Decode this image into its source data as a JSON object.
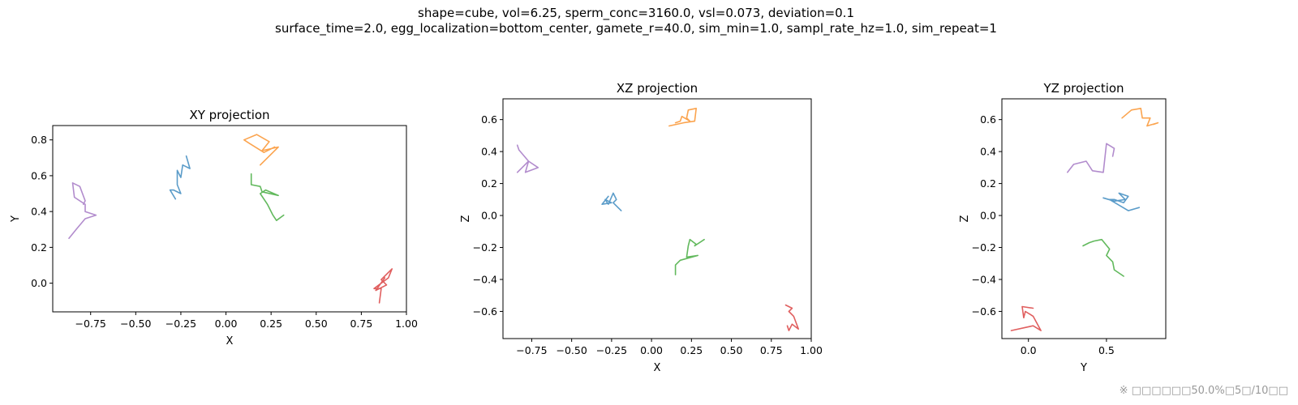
{
  "suptitle_line1": "shape=cube, vol=6.25, sperm_conc=3160.0, vsl=0.073, deviation=0.1",
  "suptitle_line2": "surface_time=2.0, egg_localization=bottom_center, gamete_r=40.0, sim_min=1.0, sampl_rate_hz=1.0, sim_repeat=1",
  "footnote": "※ □□□□□□50.0%□5□/10□□",
  "colors": {
    "blue": "#5b9cc9",
    "orange": "#fba44f",
    "green": "#62b95d",
    "red": "#e05f5f",
    "purple": "#b28ccd"
  },
  "chart_data": [
    {
      "type": "line",
      "title": "XY projection",
      "xlabel": "X",
      "ylabel": "Y",
      "xlim": [
        -0.96,
        1.0
      ],
      "ylim": [
        -0.16,
        0.88
      ],
      "xticks": [
        -0.75,
        -0.5,
        -0.25,
        0.0,
        0.25,
        0.5,
        0.75,
        1.0
      ],
      "xtick_labels": [
        "−0.75",
        "−0.50",
        "−0.25",
        "0.00",
        "0.25",
        "0.50",
        "0.75",
        "1.00"
      ],
      "yticks": [
        0.0,
        0.2,
        0.4,
        0.6,
        0.8
      ],
      "ytick_labels": [
        "0.0",
        "0.2",
        "0.4",
        "0.6",
        "0.8"
      ],
      "grid": false,
      "series": [
        {
          "color_key": "blue",
          "points": [
            [
              -0.22,
              0.71
            ],
            [
              -0.2,
              0.64
            ],
            [
              -0.24,
              0.66
            ],
            [
              -0.25,
              0.59
            ],
            [
              -0.27,
              0.63
            ],
            [
              -0.27,
              0.55
            ],
            [
              -0.25,
              0.5
            ],
            [
              -0.29,
              0.52
            ],
            [
              -0.31,
              0.52
            ],
            [
              -0.28,
              0.47
            ]
          ]
        },
        {
          "color_key": "orange",
          "points": [
            [
              0.19,
              0.66
            ],
            [
              0.26,
              0.73
            ],
            [
              0.29,
              0.76
            ],
            [
              0.2,
              0.74
            ],
            [
              0.24,
              0.79
            ],
            [
              0.17,
              0.83
            ],
            [
              0.1,
              0.8
            ],
            [
              0.13,
              0.78
            ],
            [
              0.21,
              0.73
            ],
            [
              0.27,
              0.76
            ]
          ]
        },
        {
          "color_key": "green",
          "points": [
            [
              0.14,
              0.61
            ],
            [
              0.14,
              0.55
            ],
            [
              0.19,
              0.54
            ],
            [
              0.2,
              0.51
            ],
            [
              0.29,
              0.49
            ],
            [
              0.22,
              0.52
            ],
            [
              0.19,
              0.5
            ],
            [
              0.23,
              0.44
            ],
            [
              0.26,
              0.38
            ],
            [
              0.28,
              0.35
            ],
            [
              0.32,
              0.38
            ]
          ]
        },
        {
          "color_key": "red",
          "points": [
            [
              0.85,
              -0.11
            ],
            [
              0.86,
              -0.03
            ],
            [
              0.82,
              -0.03
            ],
            [
              0.9,
              0.03
            ],
            [
              0.92,
              0.08
            ],
            [
              0.86,
              0.02
            ],
            [
              0.89,
              -0.01
            ],
            [
              0.83,
              -0.04
            ],
            [
              0.88,
              0.03
            ]
          ]
        },
        {
          "color_key": "purple",
          "points": [
            [
              -0.87,
              0.25
            ],
            [
              -0.83,
              0.3
            ],
            [
              -0.78,
              0.36
            ],
            [
              -0.72,
              0.38
            ],
            [
              -0.78,
              0.4
            ],
            [
              -0.78,
              0.44
            ],
            [
              -0.84,
              0.48
            ],
            [
              -0.85,
              0.56
            ],
            [
              -0.81,
              0.54
            ],
            [
              -0.78,
              0.46
            ],
            [
              -0.79,
              0.44
            ]
          ]
        }
      ]
    },
    {
      "type": "line",
      "title": "XZ projection",
      "xlabel": "X",
      "ylabel": "Z",
      "xlim": [
        -0.93,
        1.0
      ],
      "ylim": [
        -0.77,
        0.73
      ],
      "xticks": [
        -0.75,
        -0.5,
        -0.25,
        0.0,
        0.25,
        0.5,
        0.75,
        1.0
      ],
      "xtick_labels": [
        "−0.75",
        "−0.50",
        "−0.25",
        "0.00",
        "0.25",
        "0.50",
        "0.75",
        "1.00"
      ],
      "yticks": [
        -0.6,
        -0.4,
        -0.2,
        0.0,
        0.2,
        0.4,
        0.6
      ],
      "ytick_labels": [
        "−0.6",
        "−0.4",
        "−0.2",
        "0.0",
        "0.2",
        "0.4",
        "0.6"
      ],
      "grid": false,
      "series": [
        {
          "color_key": "blue",
          "points": [
            [
              -0.19,
              0.03
            ],
            [
              -0.24,
              0.08
            ],
            [
              -0.22,
              0.1
            ],
            [
              -0.24,
              0.14
            ],
            [
              -0.27,
              0.07
            ],
            [
              -0.29,
              0.1
            ],
            [
              -0.25,
              0.08
            ],
            [
              -0.31,
              0.07
            ],
            [
              -0.27,
              0.12
            ]
          ]
        },
        {
          "color_key": "orange",
          "points": [
            [
              0.11,
              0.56
            ],
            [
              0.2,
              0.58
            ],
            [
              0.27,
              0.59
            ],
            [
              0.28,
              0.67
            ],
            [
              0.23,
              0.66
            ],
            [
              0.22,
              0.61
            ],
            [
              0.24,
              0.59
            ],
            [
              0.19,
              0.62
            ],
            [
              0.18,
              0.59
            ],
            [
              0.15,
              0.58
            ]
          ]
        },
        {
          "color_key": "green",
          "points": [
            [
              0.15,
              -0.37
            ],
            [
              0.15,
              -0.31
            ],
            [
              0.18,
              -0.28
            ],
            [
              0.29,
              -0.25
            ],
            [
              0.22,
              -0.26
            ],
            [
              0.23,
              -0.19
            ],
            [
              0.24,
              -0.15
            ],
            [
              0.28,
              -0.18
            ],
            [
              0.27,
              -0.19
            ],
            [
              0.33,
              -0.15
            ]
          ]
        },
        {
          "color_key": "red",
          "points": [
            [
              0.84,
              -0.56
            ],
            [
              0.88,
              -0.58
            ],
            [
              0.86,
              -0.6
            ],
            [
              0.89,
              -0.63
            ],
            [
              0.92,
              -0.71
            ],
            [
              0.88,
              -0.68
            ],
            [
              0.86,
              -0.72
            ],
            [
              0.85,
              -0.69
            ]
          ]
        },
        {
          "color_key": "purple",
          "points": [
            [
              -0.84,
              0.44
            ],
            [
              -0.83,
              0.41
            ],
            [
              -0.77,
              0.34
            ],
            [
              -0.79,
              0.27
            ],
            [
              -0.71,
              0.3
            ],
            [
              -0.77,
              0.34
            ],
            [
              -0.8,
              0.31
            ],
            [
              -0.84,
              0.27
            ]
          ]
        }
      ]
    },
    {
      "type": "line",
      "title": "YZ projection",
      "xlabel": "Y",
      "ylabel": "Z",
      "xlim": [
        -0.17,
        0.88
      ],
      "ylim": [
        -0.77,
        0.73
      ],
      "xticks": [
        0.0,
        0.5
      ],
      "xtick_labels": [
        "0.0",
        "0.5"
      ],
      "yticks": [
        -0.6,
        -0.4,
        -0.2,
        0.0,
        0.2,
        0.4,
        0.6
      ],
      "ytick_labels": [
        "−0.6",
        "−0.4",
        "−0.2",
        "0.0",
        "0.2",
        "0.4",
        "0.6"
      ],
      "grid": false,
      "series": [
        {
          "color_key": "blue",
          "points": [
            [
              0.48,
              0.11
            ],
            [
              0.55,
              0.09
            ],
            [
              0.62,
              0.1
            ],
            [
              0.58,
              0.14
            ],
            [
              0.64,
              0.12
            ],
            [
              0.61,
              0.08
            ],
            [
              0.55,
              0.1
            ],
            [
              0.52,
              0.1
            ],
            [
              0.64,
              0.03
            ],
            [
              0.71,
              0.05
            ]
          ]
        },
        {
          "color_key": "orange",
          "points": [
            [
              0.6,
              0.61
            ],
            [
              0.66,
              0.66
            ],
            [
              0.72,
              0.67
            ],
            [
              0.73,
              0.61
            ],
            [
              0.78,
              0.61
            ],
            [
              0.76,
              0.56
            ],
            [
              0.83,
              0.58
            ],
            [
              0.8,
              0.57
            ]
          ]
        },
        {
          "color_key": "green",
          "points": [
            [
              0.61,
              -0.38
            ],
            [
              0.55,
              -0.34
            ],
            [
              0.54,
              -0.29
            ],
            [
              0.5,
              -0.25
            ],
            [
              0.52,
              -0.21
            ],
            [
              0.47,
              -0.15
            ],
            [
              0.42,
              -0.16
            ],
            [
              0.39,
              -0.17
            ],
            [
              0.35,
              -0.19
            ]
          ]
        },
        {
          "color_key": "red",
          "points": [
            [
              -0.11,
              -0.72
            ],
            [
              0.03,
              -0.69
            ],
            [
              0.08,
              -0.72
            ],
            [
              0.03,
              -0.63
            ],
            [
              -0.02,
              -0.6
            ],
            [
              -0.03,
              -0.64
            ],
            [
              -0.04,
              -0.57
            ],
            [
              0.03,
              -0.58
            ]
          ]
        },
        {
          "color_key": "purple",
          "points": [
            [
              0.25,
              0.27
            ],
            [
              0.29,
              0.32
            ],
            [
              0.37,
              0.34
            ],
            [
              0.41,
              0.28
            ],
            [
              0.48,
              0.27
            ],
            [
              0.5,
              0.45
            ],
            [
              0.55,
              0.42
            ],
            [
              0.54,
              0.37
            ]
          ]
        }
      ]
    }
  ]
}
